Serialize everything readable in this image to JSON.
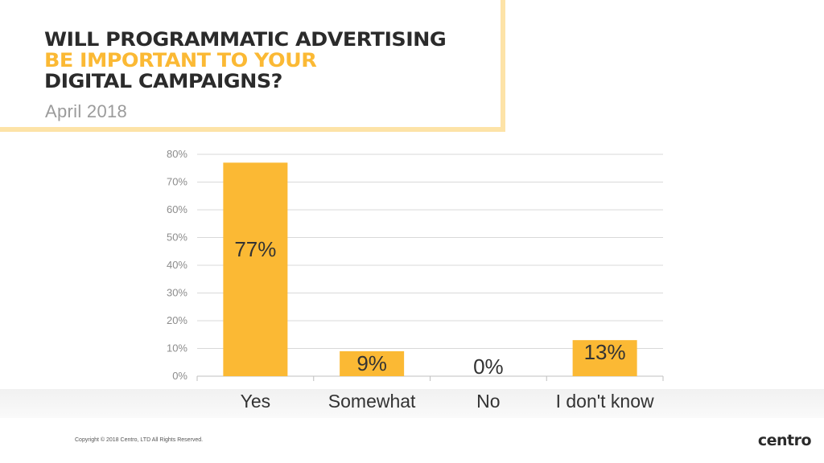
{
  "header": {
    "title_line1": "WILL PROGRAMMATIC ADVERTISING",
    "title_line2": "BE IMPORTANT TO YOUR",
    "title_line3": "DIGITAL CAMPAIGNS?",
    "subtitle": "April 2018"
  },
  "footer": {
    "copyright": "Copyright © 2018 Centro, LTD All Rights Reserved.",
    "logo": "centro"
  },
  "colors": {
    "bar": "#fbb934",
    "accent_yellow": "#fbb934",
    "border_yellow": "#fde3a7",
    "text_dark": "#2b2b2b",
    "subtitle_gray": "#9b9b9b",
    "grid": "#d9d9d9"
  },
  "chart_data": {
    "type": "bar",
    "categories": [
      "Yes",
      "Somewhat",
      "No",
      "I don't know"
    ],
    "values": [
      77,
      9,
      0,
      13
    ],
    "data_labels": [
      "77%",
      "9%",
      "0%",
      "13%"
    ],
    "ylim": [
      0,
      80
    ],
    "yticks": [
      0,
      10,
      20,
      30,
      40,
      50,
      60,
      70,
      80
    ],
    "ytick_labels": [
      "0%",
      "10%",
      "20%",
      "30%",
      "40%",
      "50%",
      "60%",
      "70%",
      "80%"
    ],
    "grid": true,
    "legend": "none"
  }
}
